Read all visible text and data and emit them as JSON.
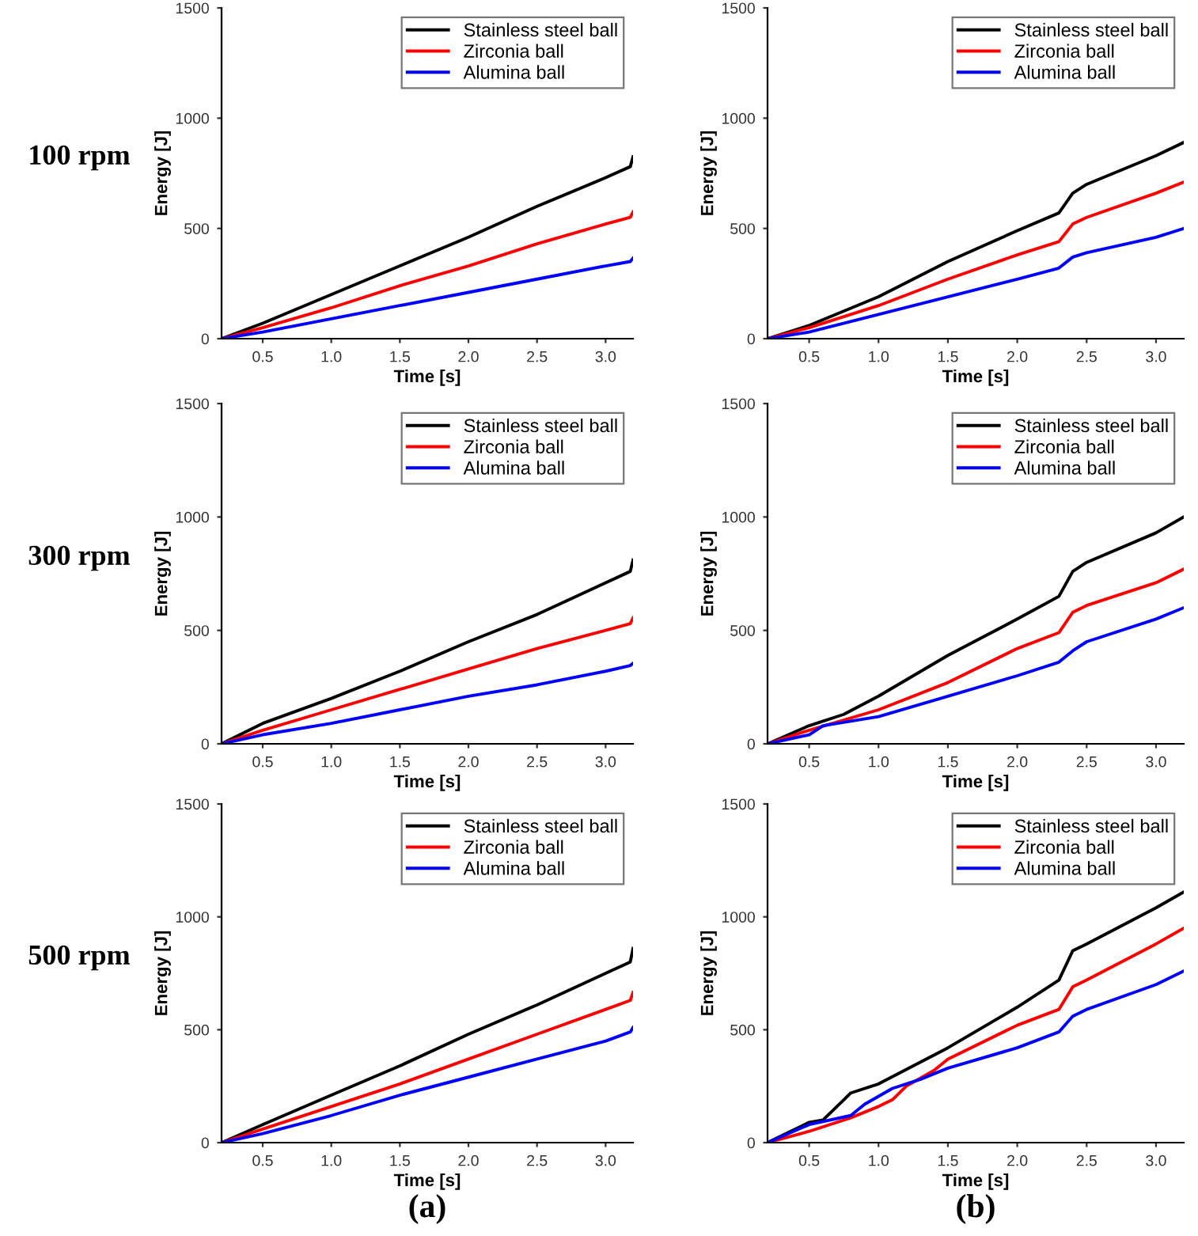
{
  "chart_data": [
    {
      "type": "line",
      "xlabel": "Time [s]",
      "ylabel": "Energy [J]",
      "xlim": [
        0.2,
        3.2
      ],
      "ylim": [
        0,
        1500
      ],
      "xticks": [
        0.5,
        {
          "value": 1,
          "label": "1.0"
        },
        1.5,
        {
          "value": 2,
          "label": "2.0"
        },
        2.5,
        {
          "value": 3,
          "label": "3.0"
        }
      ],
      "yticks": [
        0,
        500,
        1000,
        1500
      ],
      "legend": "top right",
      "grid": false,
      "annotations": [
        "100 rpm"
      ],
      "x": [
        0.2,
        0.5,
        1.0,
        1.5,
        2.0,
        2.5,
        3.0,
        3.18,
        3.2
      ],
      "series": [
        {
          "name": "Stainless steel ball",
          "color": "#000000",
          "values": [
            0,
            70,
            200,
            330,
            460,
            600,
            730,
            780,
            825
          ]
        },
        {
          "name": "Zirconia ball",
          "color": "#ff0000",
          "values": [
            0,
            50,
            140,
            240,
            330,
            430,
            520,
            550,
            575
          ]
        },
        {
          "name": "Alumina ball",
          "color": "#0000ff",
          "values": [
            0,
            30,
            90,
            150,
            210,
            270,
            330,
            350,
            365
          ]
        }
      ]
    },
    {
      "type": "line",
      "xlabel": "Time [s]",
      "ylabel": "Energy [J]",
      "xlim": [
        0.2,
        3.2
      ],
      "ylim": [
        0,
        1500
      ],
      "xticks": [
        0.5,
        {
          "value": 1,
          "label": "1.0"
        },
        1.5,
        {
          "value": 2,
          "label": "2.0"
        },
        2.5,
        {
          "value": 3,
          "label": "3.0"
        }
      ],
      "yticks": [
        0,
        500,
        1000,
        1500
      ],
      "legend": "top right",
      "grid": false,
      "x": [
        0.2,
        0.5,
        1.0,
        1.5,
        2.0,
        2.3,
        2.4,
        2.5,
        3.0,
        3.2
      ],
      "series": [
        {
          "name": "Stainless steel ball",
          "color": "#000000",
          "values": [
            0,
            60,
            190,
            350,
            490,
            570,
            660,
            700,
            830,
            890
          ]
        },
        {
          "name": "Zirconia ball",
          "color": "#ff0000",
          "values": [
            0,
            50,
            150,
            270,
            380,
            440,
            520,
            550,
            660,
            710
          ]
        },
        {
          "name": "Alumina ball",
          "color": "#0000ff",
          "values": [
            0,
            30,
            110,
            190,
            270,
            320,
            370,
            390,
            460,
            500
          ]
        }
      ]
    },
    {
      "type": "line",
      "xlabel": "Time [s]",
      "ylabel": "Energy [J]",
      "xlim": [
        0.2,
        3.2
      ],
      "ylim": [
        0,
        1500
      ],
      "xticks": [
        0.5,
        {
          "value": 1,
          "label": "1.0"
        },
        1.5,
        {
          "value": 2,
          "label": "2.0"
        },
        2.5,
        {
          "value": 3,
          "label": "3.0"
        }
      ],
      "yticks": [
        0,
        500,
        1000,
        1500
      ],
      "legend": "top right",
      "grid": false,
      "annotations": [
        "300 rpm"
      ],
      "x": [
        0.2,
        0.5,
        1.0,
        1.5,
        2.0,
        2.5,
        3.0,
        3.18,
        3.2
      ],
      "series": [
        {
          "name": "Stainless steel ball",
          "color": "#000000",
          "values": [
            0,
            90,
            200,
            320,
            450,
            570,
            710,
            760,
            810
          ]
        },
        {
          "name": "Zirconia ball",
          "color": "#ff0000",
          "values": [
            0,
            60,
            150,
            240,
            330,
            420,
            500,
            530,
            555
          ]
        },
        {
          "name": "Alumina ball",
          "color": "#0000ff",
          "values": [
            0,
            40,
            90,
            150,
            210,
            260,
            320,
            345,
            355
          ]
        }
      ]
    },
    {
      "type": "line",
      "xlabel": "Time [s]",
      "ylabel": "Energy [J]",
      "xlim": [
        0.2,
        3.2
      ],
      "ylim": [
        0,
        1500
      ],
      "xticks": [
        0.5,
        {
          "value": 1,
          "label": "1.0"
        },
        1.5,
        {
          "value": 2,
          "label": "2.0"
        },
        2.5,
        {
          "value": 3,
          "label": "3.0"
        }
      ],
      "yticks": [
        0,
        500,
        1000,
        1500
      ],
      "legend": "top right",
      "grid": false,
      "series": [
        {
          "name": "Stainless steel ball",
          "color": "#000000",
          "x": [
            0.2,
            0.5,
            0.75,
            1.0,
            1.5,
            2.0,
            2.3,
            2.4,
            2.5,
            3.0,
            3.2
          ],
          "values": [
            0,
            80,
            130,
            210,
            390,
            550,
            650,
            760,
            800,
            930,
            1000
          ]
        },
        {
          "name": "Zirconia ball",
          "color": "#ff0000",
          "x": [
            0.2,
            0.5,
            1.0,
            1.5,
            2.0,
            2.3,
            2.4,
            2.5,
            3.0,
            3.2
          ],
          "values": [
            0,
            60,
            150,
            270,
            420,
            490,
            580,
            610,
            710,
            770
          ]
        },
        {
          "name": "Alumina ball",
          "color": "#0000ff",
          "x": [
            0.2,
            0.5,
            0.6,
            1.0,
            1.5,
            2.0,
            2.3,
            2.4,
            2.5,
            3.0,
            3.2
          ],
          "values": [
            0,
            40,
            80,
            120,
            210,
            300,
            360,
            410,
            450,
            550,
            600
          ]
        }
      ]
    },
    {
      "type": "line",
      "xlabel": "Time [s]",
      "ylabel": "Energy [J]",
      "xlim": [
        0.2,
        3.2
      ],
      "ylim": [
        0,
        1500
      ],
      "xticks": [
        0.5,
        {
          "value": 1,
          "label": "1.0"
        },
        1.5,
        {
          "value": 2,
          "label": "2.0"
        },
        2.5,
        {
          "value": 3,
          "label": "3.0"
        }
      ],
      "yticks": [
        0,
        500,
        1000,
        1500
      ],
      "legend": "top right",
      "grid": false,
      "annotations": [
        "500 rpm",
        "(a)"
      ],
      "x": [
        0.2,
        0.5,
        1.0,
        1.5,
        2.0,
        2.5,
        3.0,
        3.18,
        3.2
      ],
      "series": [
        {
          "name": "Stainless steel ball",
          "color": "#000000",
          "values": [
            0,
            80,
            210,
            340,
            480,
            610,
            750,
            800,
            860
          ]
        },
        {
          "name": "Zirconia ball",
          "color": "#ff0000",
          "values": [
            0,
            60,
            160,
            260,
            370,
            480,
            590,
            630,
            665
          ]
        },
        {
          "name": "Alumina ball",
          "color": "#0000ff",
          "values": [
            0,
            40,
            120,
            210,
            290,
            370,
            450,
            490,
            510
          ]
        }
      ]
    },
    {
      "type": "line",
      "xlabel": "Time [s]",
      "ylabel": "Energy [J]",
      "xlim": [
        0.2,
        3.2
      ],
      "ylim": [
        0,
        1500
      ],
      "xticks": [
        0.5,
        {
          "value": 1,
          "label": "1.0"
        },
        1.5,
        {
          "value": 2,
          "label": "2.0"
        },
        2.5,
        {
          "value": 3,
          "label": "3.0"
        }
      ],
      "yticks": [
        0,
        500,
        1000,
        1500
      ],
      "legend": "top right",
      "grid": false,
      "annotations": [
        "(b)"
      ],
      "series": [
        {
          "name": "Stainless steel ball",
          "color": "#000000",
          "x": [
            0.2,
            0.5,
            0.6,
            0.75,
            0.8,
            1.0,
            1.5,
            2.0,
            2.3,
            2.4,
            2.5,
            3.0,
            3.2
          ],
          "values": [
            0,
            90,
            100,
            190,
            220,
            260,
            420,
            600,
            720,
            850,
            880,
            1040,
            1110
          ]
        },
        {
          "name": "Zirconia ball",
          "color": "#ff0000",
          "x": [
            0.2,
            0.5,
            0.8,
            1.0,
            1.1,
            1.2,
            1.4,
            1.5,
            2.0,
            2.3,
            2.4,
            2.5,
            3.0,
            3.2
          ],
          "values": [
            0,
            50,
            110,
            160,
            190,
            250,
            320,
            370,
            520,
            590,
            690,
            720,
            880,
            950
          ]
        },
        {
          "name": "Alumina ball",
          "color": "#0000ff",
          "x": [
            0.2,
            0.5,
            0.8,
            0.9,
            1.1,
            1.3,
            1.5,
            2.0,
            2.3,
            2.4,
            2.5,
            3.0,
            3.2
          ],
          "values": [
            0,
            80,
            120,
            170,
            240,
            280,
            330,
            420,
            490,
            560,
            590,
            700,
            760
          ]
        }
      ]
    }
  ]
}
